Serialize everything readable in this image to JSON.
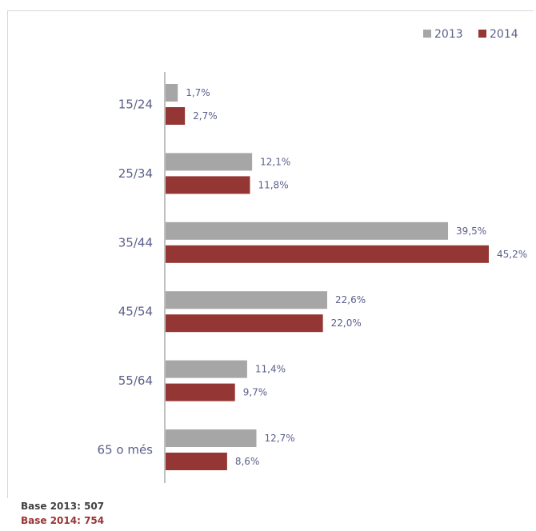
{
  "chart_data": {
    "type": "bar",
    "orientation": "horizontal",
    "categories": [
      "15/24",
      "25/34",
      "35/44",
      "45/54",
      "55/64",
      "65 o més"
    ],
    "series": [
      {
        "name": "2013",
        "color": "#a6a6a6",
        "values": [
          1.7,
          12.1,
          39.5,
          22.6,
          11.4,
          12.7
        ],
        "labels": [
          "1,7%",
          "12,1%",
          "39,5%",
          "22,6%",
          "11,4%",
          "12,7%"
        ]
      },
      {
        "name": "2014",
        "color": "#943634",
        "values": [
          2.7,
          11.8,
          45.2,
          22.0,
          9.7,
          8.6
        ],
        "labels": [
          "2,7%",
          "11,8%",
          "45,2%",
          "22,0%",
          "9,7%",
          "8,6%"
        ]
      }
    ],
    "xlim": [
      0,
      45.2
    ],
    "grid": false,
    "legend": "top-right"
  },
  "notes": {
    "base_2013": "Base 2013: 507",
    "base_2014": "Base 2014: 754"
  }
}
